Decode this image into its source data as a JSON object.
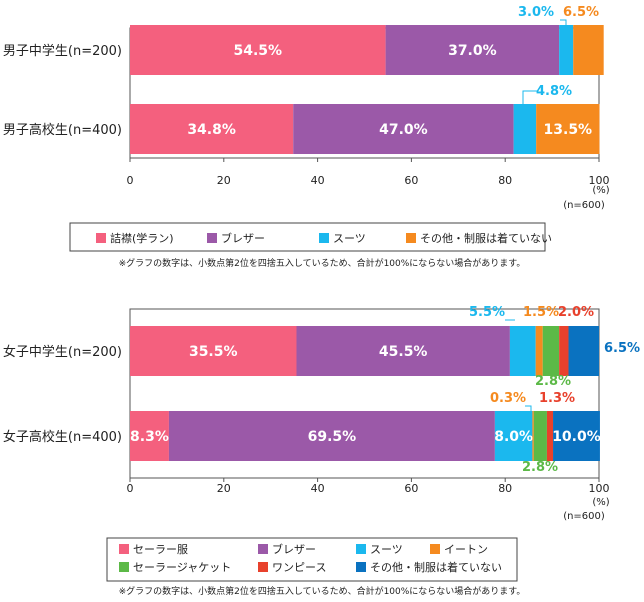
{
  "chart_data": [
    {
      "type": "bar",
      "orientation": "horizontal",
      "stacked": true,
      "categories": [
        "男子中学生(n=200)",
        "男子高校生(n=400)"
      ],
      "series": [
        {
          "name": "詰襟(学ラン)",
          "color": "#f4607e",
          "values": [
            54.5,
            34.8
          ]
        },
        {
          "name": "ブレザー",
          "color": "#9b59a8",
          "values": [
            37.0,
            47.0
          ]
        },
        {
          "name": "スーツ",
          "color": "#1bb8ee",
          "values": [
            3.0,
            4.8
          ]
        },
        {
          "name": "その他・制服は着ていない",
          "color": "#f58a1f",
          "values": [
            6.5,
            13.5
          ]
        }
      ],
      "xlim": [
        0,
        100
      ],
      "xticks": [
        "0",
        "20",
        "40",
        "60",
        "80",
        "100"
      ],
      "unit": "(%)",
      "n_note": "(n=600)",
      "legend_position": "bottom",
      "note": "※グラフの数字は、小数点第2位を四捨五入しているため、合計が100%にならない場合があります。"
    },
    {
      "type": "bar",
      "orientation": "horizontal",
      "stacked": true,
      "categories": [
        "女子中学生(n=200)",
        "女子高校生(n=400)"
      ],
      "series": [
        {
          "name": "セーラー服",
          "color": "#f4607e",
          "values": [
            35.5,
            8.3
          ]
        },
        {
          "name": "ブレザー",
          "color": "#9b59a8",
          "values": [
            45.5,
            69.5
          ]
        },
        {
          "name": "スーツ",
          "color": "#1bb8ee",
          "values": [
            5.5,
            8.0
          ]
        },
        {
          "name": "イートン",
          "color": "#f58a1f",
          "values": [
            1.5,
            0.3
          ]
        },
        {
          "name": "セーラージャケット",
          "color": "#5cb947",
          "values": [
            3.5,
            2.8
          ]
        },
        {
          "name": "ワンピース",
          "color": "#e8412c",
          "values": [
            2.0,
            1.3
          ]
        },
        {
          "name": "その他・制服は着ていない",
          "color": "#0a72c0",
          "values": [
            6.5,
            10.0
          ]
        }
      ],
      "xlim": [
        0,
        100
      ],
      "xticks": [
        "0",
        "20",
        "40",
        "60",
        "80",
        "100"
      ],
      "unit": "(%)",
      "n_note": "(n=600)",
      "legend_position": "bottom",
      "note": "※グラフの数字は、小数点第2位を四捨五入しているため、合計が100%にならない場合があります。"
    }
  ]
}
